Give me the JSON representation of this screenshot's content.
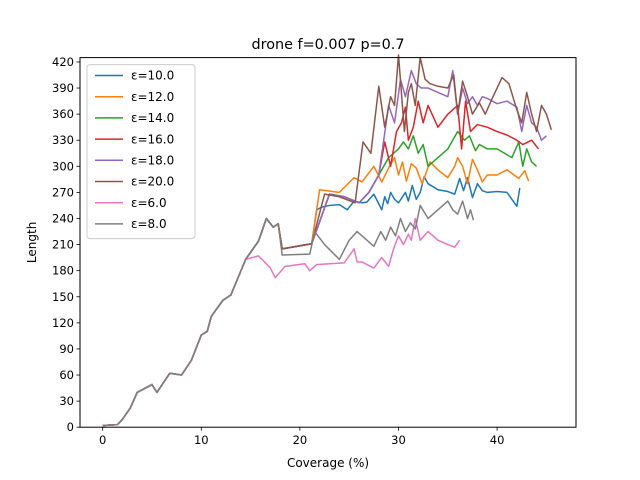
{
  "chart_data": {
    "type": "line",
    "title": "drone f=0.007 p=0.7",
    "xlabel": "Coverage (%)",
    "ylabel": "Length",
    "xlim": [
      -2.3,
      48
    ],
    "ylim": [
      0,
      425
    ],
    "xticks": [
      0,
      10,
      20,
      30,
      40
    ],
    "yticks": [
      0,
      30,
      60,
      90,
      120,
      150,
      180,
      210,
      240,
      270,
      300,
      330,
      360,
      390,
      420
    ],
    "grid": false,
    "legend_position": "top-left",
    "series": [
      {
        "name": "ε=10.0",
        "color": "#1f77b4",
        "x": [
          0,
          1.5,
          2,
          2.8,
          3.5,
          5,
          5.5,
          6.8,
          8,
          9,
          10,
          10.6,
          11,
          11.3,
          12.2,
          13,
          14.5,
          15.8,
          16.6,
          17.3,
          17.8,
          18.2,
          21.2,
          21.7,
          22.2,
          23,
          24,
          24.8,
          25.5,
          26.3,
          26.8,
          27.5,
          28.3,
          28.6,
          28.9,
          29.2,
          29.6,
          30,
          30.3,
          30.7,
          31,
          31.4,
          31.8,
          32.2,
          32.6,
          33,
          34,
          35,
          35.7,
          36.2,
          36.6,
          37,
          37.5,
          38,
          38.5,
          39,
          40,
          41,
          42,
          42.3
        ],
        "y": [
          2,
          3,
          9,
          22,
          40,
          49,
          40,
          62,
          60,
          77,
          106,
          110,
          127,
          132,
          146,
          152,
          193,
          214,
          240,
          230,
          234,
          205,
          211,
          250,
          253,
          255,
          256,
          250,
          260,
          258,
          259,
          268,
          250,
          265,
          257,
          270,
          262,
          258,
          263,
          270,
          260,
          278,
          262,
          270,
          288,
          280,
          273,
          271,
          268,
          286,
          272,
          287,
          264,
          280,
          272,
          270,
          271,
          270,
          254,
          275
        ]
      },
      {
        "name": "ε=12.0",
        "color": "#ff7f0e",
        "x": [
          0,
          1.5,
          2,
          2.8,
          3.5,
          5,
          5.5,
          6.8,
          8,
          9,
          10,
          10.6,
          11,
          11.3,
          12.2,
          13,
          14.5,
          15.8,
          16.6,
          17.3,
          17.8,
          18.2,
          21.2,
          22,
          24,
          25.5,
          26.3,
          27.5,
          28.3,
          29,
          29.6,
          30,
          30.4,
          30.8,
          31.3,
          31.8,
          32.4,
          33.2,
          34,
          35,
          35.7,
          36,
          36.5,
          37,
          37.5,
          38,
          38.5,
          39,
          40,
          41,
          42.2,
          42.8,
          43.2
        ],
        "y": [
          2,
          3,
          9,
          22,
          40,
          49,
          40,
          62,
          60,
          77,
          106,
          110,
          127,
          132,
          146,
          152,
          193,
          214,
          240,
          230,
          234,
          205,
          211,
          273,
          270,
          287,
          282,
          300,
          282,
          298,
          310,
          290,
          305,
          283,
          303,
          298,
          280,
          305,
          296,
          287,
          300,
          310,
          300,
          280,
          308,
          296,
          282,
          290,
          290,
          296,
          286,
          295,
          283
        ]
      },
      {
        "name": "ε=14.0",
        "color": "#2ca02c",
        "x": [
          0,
          1.5,
          2,
          2.8,
          3.5,
          5,
          5.5,
          6.8,
          8,
          9,
          10,
          10.6,
          11,
          11.3,
          12.2,
          13,
          14.5,
          15.8,
          16.6,
          17.3,
          17.8,
          18.2,
          21.2,
          23,
          24.5,
          26,
          27,
          28,
          29,
          30,
          30.5,
          31,
          31.5,
          32,
          32.5,
          33,
          34,
          35,
          36,
          36.7,
          37.2,
          37.8,
          38.2,
          39,
          40,
          41.5,
          42.2,
          42.6,
          43,
          43.5,
          44
        ],
        "y": [
          2,
          3,
          9,
          22,
          40,
          49,
          40,
          62,
          60,
          77,
          106,
          110,
          127,
          132,
          146,
          152,
          193,
          214,
          240,
          230,
          234,
          205,
          211,
          268,
          265,
          258,
          270,
          290,
          310,
          320,
          328,
          320,
          335,
          315,
          325,
          300,
          310,
          320,
          340,
          330,
          335,
          318,
          325,
          320,
          320,
          310,
          328,
          300,
          320,
          305,
          300
        ]
      },
      {
        "name": "ε=16.0",
        "color": "#d62728",
        "x": [
          0,
          1.5,
          2,
          2.8,
          3.5,
          5,
          5.5,
          6.8,
          8,
          9,
          10,
          10.6,
          11,
          11.3,
          12.2,
          13,
          14.5,
          15.8,
          16.6,
          17.3,
          17.8,
          18.2,
          21.2,
          23,
          24.5,
          26,
          27,
          28,
          28.6,
          29.2,
          29.8,
          30.3,
          30.7,
          31,
          31.5,
          32,
          32.5,
          33,
          34,
          35,
          36,
          36.4,
          36.8,
          37.3,
          38,
          39,
          40,
          41,
          42,
          42.6,
          43.5,
          44.2
        ],
        "y": [
          2,
          3,
          9,
          22,
          40,
          49,
          40,
          62,
          60,
          77,
          106,
          110,
          127,
          132,
          146,
          152,
          193,
          214,
          240,
          230,
          234,
          205,
          211,
          268,
          265,
          258,
          270,
          290,
          328,
          300,
          340,
          350,
          368,
          330,
          345,
          375,
          350,
          370,
          345,
          360,
          370,
          320,
          375,
          340,
          348,
          345,
          340,
          336,
          330,
          325,
          330,
          320
        ]
      },
      {
        "name": "ε=18.0",
        "color": "#9467bd",
        "x": [
          0,
          1.5,
          2,
          2.8,
          3.5,
          5,
          5.5,
          6.8,
          8,
          9,
          10,
          10.6,
          11,
          11.3,
          12.2,
          13,
          14.5,
          15.8,
          16.6,
          17.3,
          17.8,
          18.2,
          21.2,
          23,
          24.5,
          26,
          27,
          28,
          29,
          29.6,
          30.2,
          30.7,
          31.3,
          31.8,
          32.3,
          33,
          34,
          35,
          35.5,
          36,
          36.5,
          37,
          37.5,
          38,
          38.5,
          39,
          40,
          41,
          42,
          42.5,
          43,
          43.5,
          44,
          44.5,
          45
        ],
        "y": [
          2,
          3,
          9,
          22,
          40,
          49,
          40,
          62,
          60,
          77,
          106,
          110,
          127,
          132,
          146,
          152,
          193,
          214,
          240,
          230,
          234,
          205,
          211,
          268,
          265,
          258,
          270,
          290,
          370,
          350,
          400,
          380,
          410,
          395,
          390,
          390,
          385,
          380,
          410,
          360,
          390,
          372,
          380,
          370,
          380,
          378,
          372,
          375,
          368,
          340,
          370,
          350,
          345,
          330,
          335
        ]
      },
      {
        "name": "ε=20.0",
        "color": "#8c564b",
        "x": [
          0,
          1.5,
          2,
          2.8,
          3.5,
          5,
          5.5,
          6.8,
          8,
          9,
          10,
          10.6,
          11,
          11.3,
          12.2,
          13,
          14.5,
          15.8,
          16.6,
          17.3,
          17.8,
          18.2,
          21.2,
          22.5,
          24,
          25.6,
          26.4,
          27.2,
          28,
          28.6,
          29.2,
          29.6,
          30,
          30.6,
          31,
          31.3,
          31.7,
          32.2,
          32.7,
          33.2,
          34,
          35,
          35.6,
          36,
          36.5,
          37,
          37.5,
          38.2,
          38.8,
          39.5,
          40.5,
          41.2,
          42,
          42.5,
          43,
          43.5,
          44,
          44.5,
          45,
          45.5
        ],
        "y": [
          2,
          3,
          9,
          22,
          40,
          49,
          40,
          62,
          60,
          77,
          106,
          110,
          127,
          132,
          146,
          152,
          193,
          214,
          240,
          230,
          234,
          205,
          211,
          268,
          265,
          258,
          328,
          315,
          392,
          345,
          380,
          370,
          428,
          340,
          385,
          395,
          370,
          425,
          400,
          395,
          392,
          390,
          405,
          360,
          398,
          380,
          360,
          373,
          360,
          378,
          402,
          395,
          365,
          350,
          385,
          360,
          340,
          370,
          360,
          342
        ]
      },
      {
        "name": "ε=6.0",
        "color": "#e377c2",
        "x": [
          0,
          1.5,
          2,
          2.8,
          3.5,
          5,
          5.5,
          6.8,
          8,
          9,
          10,
          10.6,
          11,
          11.3,
          12.2,
          13,
          14.5,
          15.8,
          16.6,
          17,
          17.5,
          18.5,
          20.5,
          21,
          21.7,
          23,
          24.5,
          25.5,
          25.8,
          26.3,
          27.5,
          28.3,
          29,
          29.5,
          30,
          30.5,
          31,
          31.3,
          31.7,
          32.2,
          33,
          34,
          35,
          35.7,
          36.2
        ],
        "y": [
          2,
          3,
          9,
          22,
          40,
          49,
          40,
          62,
          60,
          77,
          106,
          110,
          127,
          132,
          146,
          152,
          193,
          197,
          188,
          183,
          172,
          185,
          188,
          180,
          187,
          188,
          189,
          205,
          190,
          190,
          183,
          195,
          185,
          205,
          220,
          210,
          222,
          215,
          240,
          215,
          225,
          215,
          210,
          207,
          215
        ]
      },
      {
        "name": "ε=8.0",
        "color": "#7f7f7f",
        "x": [
          0,
          1.5,
          2,
          2.8,
          3.5,
          5,
          5.5,
          6.8,
          8,
          9,
          10,
          10.6,
          11,
          11.3,
          12.2,
          13,
          14.5,
          15.8,
          16.6,
          17.3,
          17.8,
          18.2,
          21,
          21.5,
          22.5,
          24,
          25,
          25.8,
          26.5,
          27.5,
          28.2,
          28.7,
          29.2,
          29.7,
          30.2,
          30.7,
          31.2,
          31.7,
          32.2,
          33,
          34,
          35,
          35.5,
          36,
          36.5,
          37,
          37.3,
          37.6
        ],
        "y": [
          2,
          3,
          9,
          22,
          40,
          49,
          40,
          62,
          60,
          77,
          106,
          110,
          127,
          132,
          146,
          152,
          193,
          214,
          240,
          230,
          234,
          198,
          199,
          225,
          210,
          193,
          215,
          225,
          218,
          208,
          225,
          215,
          230,
          220,
          240,
          225,
          235,
          228,
          255,
          240,
          250,
          260,
          250,
          245,
          260,
          240,
          250,
          238
        ]
      }
    ]
  }
}
